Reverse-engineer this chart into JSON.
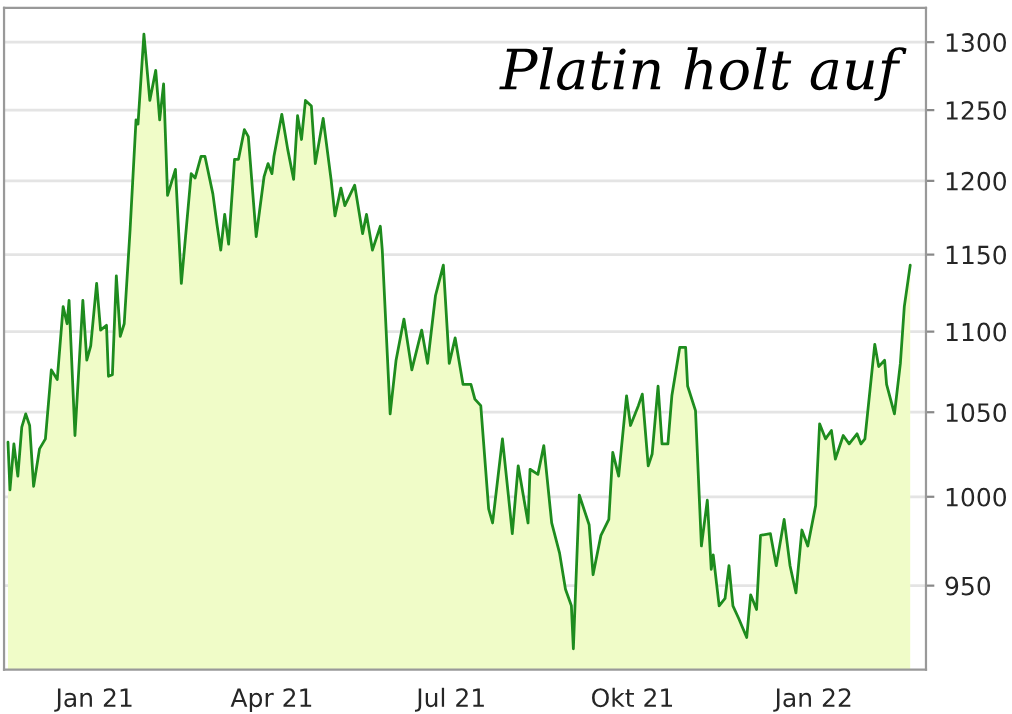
{
  "chart_data": {
    "type": "area",
    "title": "Platin holt auf",
    "log": "y",
    "grid": "y",
    "legend": false,
    "x": [
      "2020-11-18",
      "2020-11-19",
      "2020-11-21",
      "2020-11-23",
      "2020-11-25",
      "2020-11-27",
      "2020-11-29",
      "2020-12-01",
      "2020-12-04",
      "2020-12-07",
      "2020-12-10",
      "2020-12-13",
      "2020-12-16",
      "2020-12-18",
      "2020-12-19",
      "2020-12-22",
      "2020-12-26",
      "2020-12-28",
      "2020-12-30",
      "2021-01-02",
      "2021-01-04",
      "2021-01-07",
      "2021-01-08",
      "2021-01-10",
      "2021-01-12",
      "2021-01-14",
      "2021-01-16",
      "2021-01-19",
      "2021-01-22",
      "2021-01-23",
      "2021-01-26",
      "2021-01-29",
      "2021-02-01",
      "2021-02-03",
      "2021-02-05",
      "2021-02-07",
      "2021-02-11",
      "2021-02-14",
      "2021-02-19",
      "2021-02-21",
      "2021-02-24",
      "2021-02-26",
      "2021-03-02",
      "2021-03-04",
      "2021-03-06",
      "2021-03-08",
      "2021-03-10",
      "2021-03-13",
      "2021-03-15",
      "2021-03-18",
      "2021-03-20",
      "2021-03-24",
      "2021-03-28",
      "2021-03-30",
      "2021-04-01",
      "2021-04-02",
      "2021-04-06",
      "2021-04-09",
      "2021-04-12",
      "2021-04-14",
      "2021-04-16",
      "2021-04-18",
      "2021-04-21",
      "2021-04-23",
      "2021-04-27",
      "2021-05-01",
      "2021-05-03",
      "2021-05-06",
      "2021-05-08",
      "2021-05-13",
      "2021-05-17",
      "2021-05-19",
      "2021-05-22",
      "2021-05-26",
      "2021-05-27",
      "2021-05-31",
      "2021-06-03",
      "2021-06-07",
      "2021-06-11",
      "2021-06-16",
      "2021-06-19",
      "2021-06-23",
      "2021-06-27",
      "2021-06-30",
      "2021-07-03",
      "2021-07-07",
      "2021-07-11",
      "2021-07-13",
      "2021-07-16",
      "2021-07-20",
      "2021-07-22",
      "2021-07-27",
      "2021-07-30",
      "2021-08-01",
      "2021-08-04",
      "2021-08-09",
      "2021-08-10",
      "2021-08-14",
      "2021-08-17",
      "2021-08-21",
      "2021-08-25",
      "2021-08-28",
      "2021-08-31",
      "2021-09-01",
      "2021-09-04",
      "2021-09-09",
      "2021-09-11",
      "2021-09-15",
      "2021-09-19",
      "2021-09-21",
      "2021-09-24",
      "2021-09-28",
      "2021-09-30",
      "2021-10-04",
      "2021-10-06",
      "2021-10-09",
      "2021-10-11",
      "2021-10-14",
      "2021-10-16",
      "2021-10-19",
      "2021-10-21",
      "2021-10-25",
      "2021-10-28",
      "2021-10-29",
      "2021-11-02",
      "2021-11-05",
      "2021-11-08",
      "2021-11-10",
      "2021-11-11",
      "2021-11-14",
      "2021-11-17",
      "2021-11-19",
      "2021-11-21",
      "2021-11-24",
      "2021-11-28",
      "2021-11-30",
      "2021-12-03",
      "2021-12-05",
      "2021-12-10",
      "2021-12-13",
      "2021-12-17",
      "2021-12-20",
      "2021-12-23",
      "2021-12-26",
      "2021-12-29",
      "2022-01-02",
      "2022-01-04",
      "2022-01-07",
      "2022-01-10",
      "2022-01-12",
      "2022-01-16",
      "2022-01-19",
      "2022-01-23",
      "2022-01-25",
      "2022-01-27",
      "2022-02-01",
      "2022-02-03",
      "2022-02-06",
      "2022-02-07",
      "2022-02-11",
      "2022-02-14",
      "2022-02-16",
      "2022-02-19"
    ],
    "series": [
      {
        "color": "#1e8c1e",
        "values": [
          1032,
          1004,
          1031,
          1012,
          1041,
          1049,
          1042,
          1006,
          1028,
          1034,
          1076,
          1070,
          1116,
          1105,
          1120,
          1036,
          1120,
          1082,
          1091,
          1131,
          1101,
          1104,
          1072,
          1073,
          1136,
          1097,
          1105,
          1167,
          1243,
          1240,
          1306,
          1257,
          1279,
          1243,
          1269,
          1190,
          1208,
          1131,
          1205,
          1202,
          1217,
          1217,
          1191,
          1171,
          1153,
          1177,
          1157,
          1215,
          1215,
          1236,
          1231,
          1162,
          1203,
          1212,
          1205,
          1217,
          1247,
          1222,
          1201,
          1246,
          1229,
          1257,
          1253,
          1212,
          1244,
          1201,
          1176,
          1195,
          1183,
          1197,
          1164,
          1177,
          1153,
          1169,
          1153,
          1049,
          1082,
          1108,
          1076,
          1101,
          1080,
          1123,
          1143,
          1080,
          1096,
          1067,
          1067,
          1058,
          1054,
          993,
          985,
          1034,
          1001,
          979,
          1018,
          985,
          1016,
          1013,
          1030,
          985,
          968,
          948,
          939,
          916,
          1001,
          984,
          956,
          978,
          987,
          1026,
          1012,
          1060,
          1042,
          1054,
          1061,
          1018,
          1025,
          1066,
          1031,
          1031,
          1060,
          1090,
          1090,
          1066,
          1051,
          972,
          998,
          959,
          967,
          939,
          943,
          961,
          939,
          932,
          922,
          945,
          937,
          978,
          979,
          961,
          987,
          961,
          946,
          981,
          972,
          995,
          1043,
          1034,
          1039,
          1022,
          1036,
          1031,
          1037,
          1031,
          1034,
          1092,
          1078,
          1082,
          1067,
          1049,
          1080,
          1116,
          1143
        ]
      }
    ],
    "xlim": [
      "2020-11-16",
      "2022-02-27"
    ],
    "xticks": [
      {
        "value": "2021-01-01",
        "label": "Jan 21"
      },
      {
        "value": "2021-04-01",
        "label": "Apr 21"
      },
      {
        "value": "2021-07-01",
        "label": "Jul 21"
      },
      {
        "value": "2021-10-01",
        "label": "Okt 21"
      },
      {
        "value": "2022-01-01",
        "label": "Jan 22"
      }
    ],
    "ylim": [
      905,
      1326
    ],
    "yticks": [
      950,
      1000,
      1050,
      1100,
      1150,
      1200,
      1250,
      1300
    ]
  }
}
